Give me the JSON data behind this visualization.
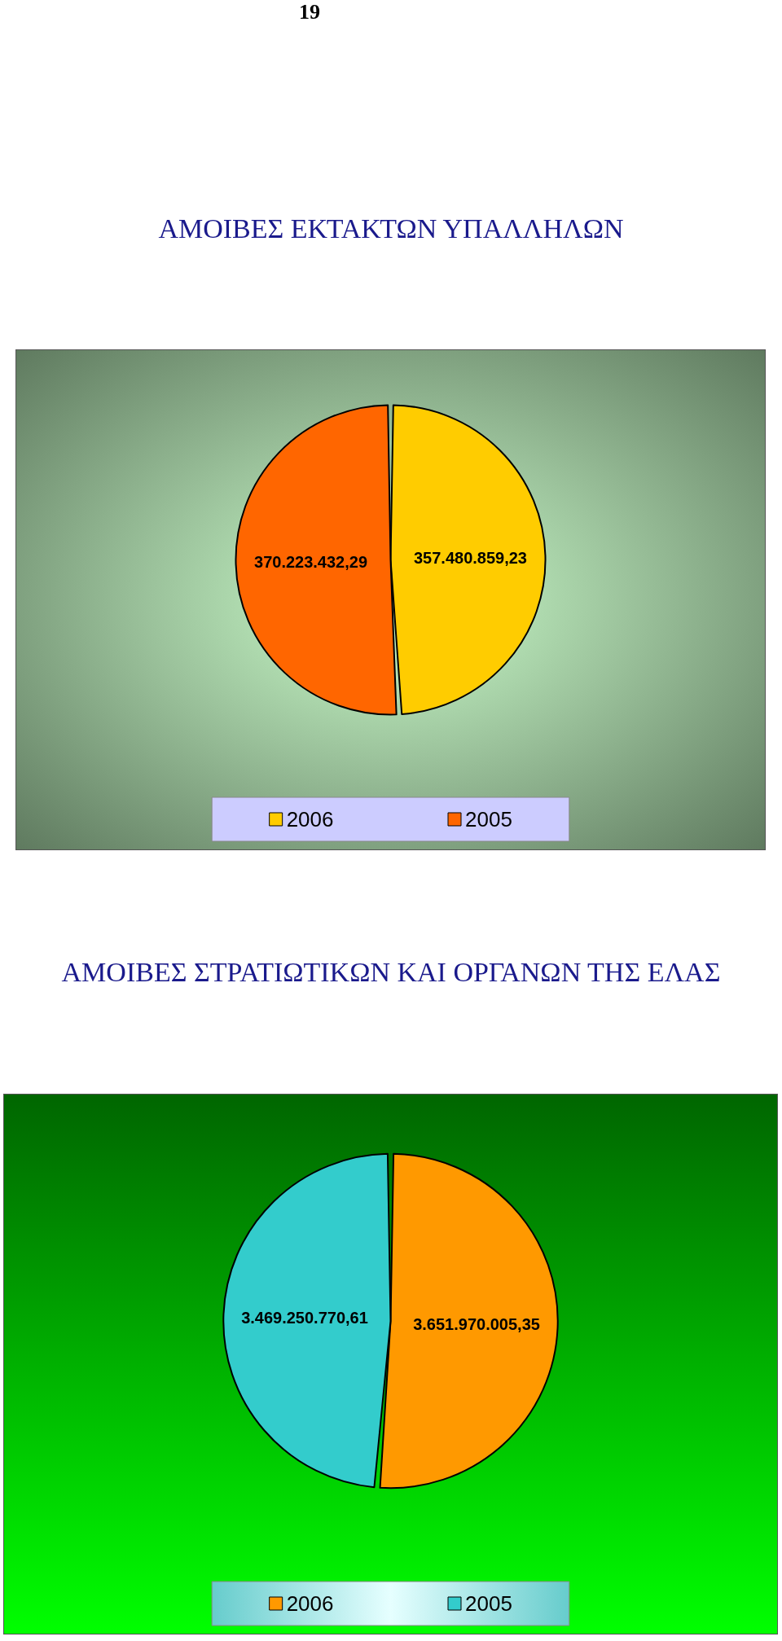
{
  "chart_data": [
    {
      "type": "pie",
      "title": "ΑΜΟΙΒΕΣ ΕΚΤΑΚΤΩΝ ΥΠΑΛΛΗΛΩΝ",
      "annotations": [
        "19"
      ],
      "categories": [
        "2006",
        "2005"
      ],
      "values": [
        357480859.23,
        370223432.29
      ],
      "value_labels": [
        "357.480.859,23",
        "370.223.432,29"
      ],
      "colors": [
        "#ffcc00",
        "#ff6600"
      ],
      "legend": "bottom"
    },
    {
      "type": "pie",
      "title": "ΑΜΟΙΒΕΣ ΣΤΡΑΤΙΩΤΙΚΩΝ ΚΑΙ ΟΡΓΑΝΩΝ ΤΗΣ ΕΛΑΣ",
      "categories": [
        "2006",
        "2005"
      ],
      "values": [
        3651970005.35,
        3469250770.61
      ],
      "value_labels": [
        "3.651.970.005,35",
        "3.469.250.770,61"
      ],
      "colors": [
        "#ff9900",
        "#33cccc"
      ],
      "legend": "bottom"
    }
  ]
}
